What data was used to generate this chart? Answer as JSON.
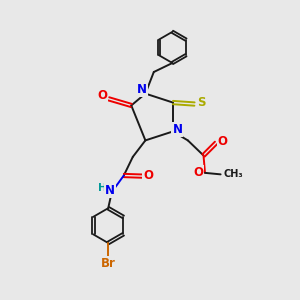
{
  "background_color": "#e8e8e8",
  "fig_width": 3.0,
  "fig_height": 3.0,
  "dpi": 100,
  "colors": {
    "C": "#1a1a1a",
    "N": "#0000ee",
    "O": "#ee0000",
    "S": "#aaaa00",
    "Br": "#cc6600",
    "H": "#009999",
    "bond": "#1a1a1a"
  },
  "lw": 1.4,
  "fs": 8.5
}
